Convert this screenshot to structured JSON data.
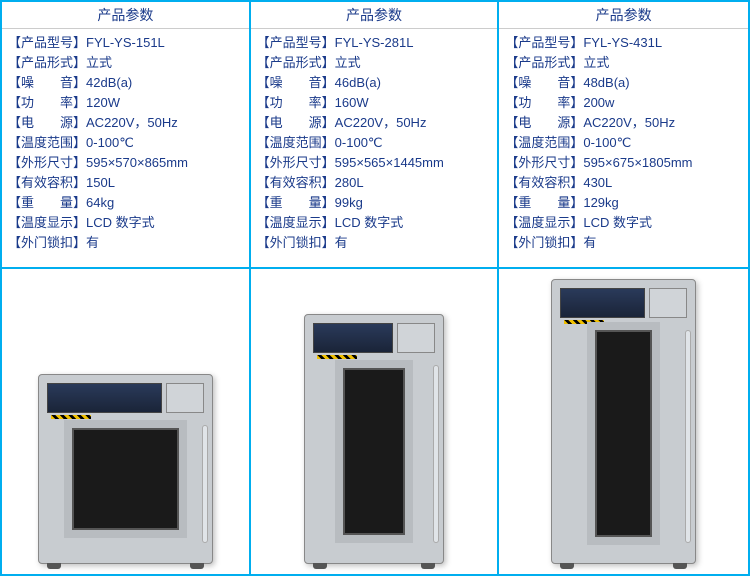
{
  "header_label": "产品参数",
  "spec_labels": {
    "model": "【产品型号】",
    "form": "【产品形式】",
    "noise": "【噪　　音】",
    "power": "【功　　率】",
    "supply": "【电　　源】",
    "temp_range": "【温度范围】",
    "dimensions": "【外形尺寸】",
    "volume": "【有效容积】",
    "weight": "【重　　量】",
    "display": "【温度显示】",
    "lock": "【外门锁扣】"
  },
  "products": [
    {
      "model": "FYL-YS-151L",
      "form": "立式",
      "noise": "42dB(a)",
      "power": "120W",
      "supply": "AC220V，50Hz",
      "temp_range": "0-100℃",
      "dimensions": " 595×570×865mm",
      "volume": "150L",
      "weight": "64kg",
      "display": "LCD 数字式",
      "lock": "有",
      "cabinet_class": "cab-small"
    },
    {
      "model": "FYL-YS-281L",
      "form": "立式",
      "noise": "46dB(a)",
      "power": "160W",
      "supply": "AC220V，50Hz",
      "temp_range": "0-100℃",
      "dimensions": " 595×565×1445mm",
      "volume": "280L",
      "weight": "99kg",
      "display": "LCD 数字式",
      "lock": "有",
      "cabinet_class": "cab-med"
    },
    {
      "model": "FYL-YS-431L",
      "form": "立式",
      "noise": "48dB(a)",
      "power": "200w",
      "supply": "AC220V，50Hz",
      "temp_range": "0-100℃",
      "dimensions": " 595×675×1805mm",
      "volume": "430L",
      "weight": "129kg",
      "display": "LCD 数字式",
      "lock": "有",
      "cabinet_class": "cab-large"
    }
  ],
  "field_order": [
    "model",
    "form",
    "noise",
    "power",
    "supply",
    "temp_range",
    "dimensions",
    "volume",
    "weight",
    "display",
    "lock"
  ]
}
